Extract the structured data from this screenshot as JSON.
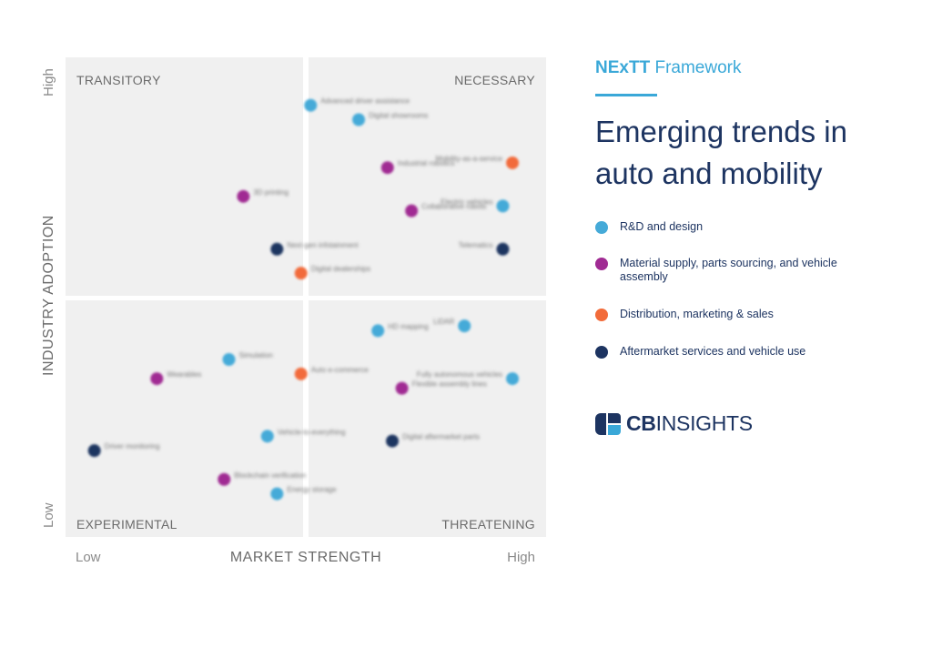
{
  "header": {
    "framework_bold": "NExTT",
    "framework_rest": " Framework",
    "title": "Emerging trends in auto and mobility"
  },
  "legend": [
    {
      "label": "R&D and design",
      "color": "#45aad8"
    },
    {
      "label": "Material supply, parts sourcing, and vehicle assembly",
      "color": "#a02b93"
    },
    {
      "label": "Distribution, marketing & sales",
      "color": "#f26b3a"
    },
    {
      "label": "Aftermarket services and vehicle use",
      "color": "#1d3461"
    }
  ],
  "logo": {
    "bold": "CB",
    "rest": "INSIGHTS"
  },
  "chart_data": {
    "type": "scatter",
    "xlabel": "MARKET STRENGTH",
    "ylabel": "INDUSTRY ADOPTION",
    "x_ticks": {
      "low": "Low",
      "high": "High"
    },
    "y_ticks": {
      "low": "Low",
      "high": "High"
    },
    "xlim": [
      0,
      1
    ],
    "ylim": [
      0,
      1
    ],
    "grid": false,
    "quadrants": {
      "top_left": "TRANSITORY",
      "top_right": "NECESSARY",
      "bottom_left": "EXPERIMENTAL",
      "bottom_right": "THREATENING"
    },
    "points": [
      {
        "x": 0.51,
        "y": 0.9,
        "category": 0,
        "label": "Advanced driver assistance"
      },
      {
        "x": 0.61,
        "y": 0.87,
        "category": 0,
        "label": "Digital showrooms"
      },
      {
        "x": 0.93,
        "y": 0.78,
        "category": 2,
        "label": "Mobility-as-a-service"
      },
      {
        "x": 0.67,
        "y": 0.77,
        "category": 1,
        "label": "Industrial robotics"
      },
      {
        "x": 0.91,
        "y": 0.69,
        "category": 0,
        "label": "Electric vehicles"
      },
      {
        "x": 0.72,
        "y": 0.68,
        "category": 1,
        "label": "Collaborative robots"
      },
      {
        "x": 0.91,
        "y": 0.6,
        "category": 3,
        "label": "Telematics"
      },
      {
        "x": 0.37,
        "y": 0.71,
        "category": 1,
        "label": "3D printing"
      },
      {
        "x": 0.44,
        "y": 0.6,
        "category": 3,
        "label": "Next-gen infotainment"
      },
      {
        "x": 0.49,
        "y": 0.55,
        "category": 2,
        "label": "Digital dealerships"
      },
      {
        "x": 0.65,
        "y": 0.43,
        "category": 0,
        "label": "HD mapping"
      },
      {
        "x": 0.83,
        "y": 0.44,
        "category": 0,
        "label": "LiDAR"
      },
      {
        "x": 0.93,
        "y": 0.33,
        "category": 0,
        "label": "Fully autonomous vehicles"
      },
      {
        "x": 0.7,
        "y": 0.31,
        "category": 1,
        "label": "Flexible assembly lines"
      },
      {
        "x": 0.34,
        "y": 0.37,
        "category": 0,
        "label": "Simulation"
      },
      {
        "x": 0.19,
        "y": 0.33,
        "category": 1,
        "label": "Wearables"
      },
      {
        "x": 0.49,
        "y": 0.34,
        "category": 2,
        "label": "Auto e-commerce"
      },
      {
        "x": 0.68,
        "y": 0.2,
        "category": 3,
        "label": "Digital aftermarket parts"
      },
      {
        "x": 0.42,
        "y": 0.21,
        "category": 0,
        "label": "Vehicle-to-everything"
      },
      {
        "x": 0.06,
        "y": 0.18,
        "category": 3,
        "label": "Driver monitoring"
      },
      {
        "x": 0.33,
        "y": 0.12,
        "category": 1,
        "label": "Blockchain verification"
      },
      {
        "x": 0.44,
        "y": 0.09,
        "category": 0,
        "label": "Energy storage"
      }
    ]
  }
}
